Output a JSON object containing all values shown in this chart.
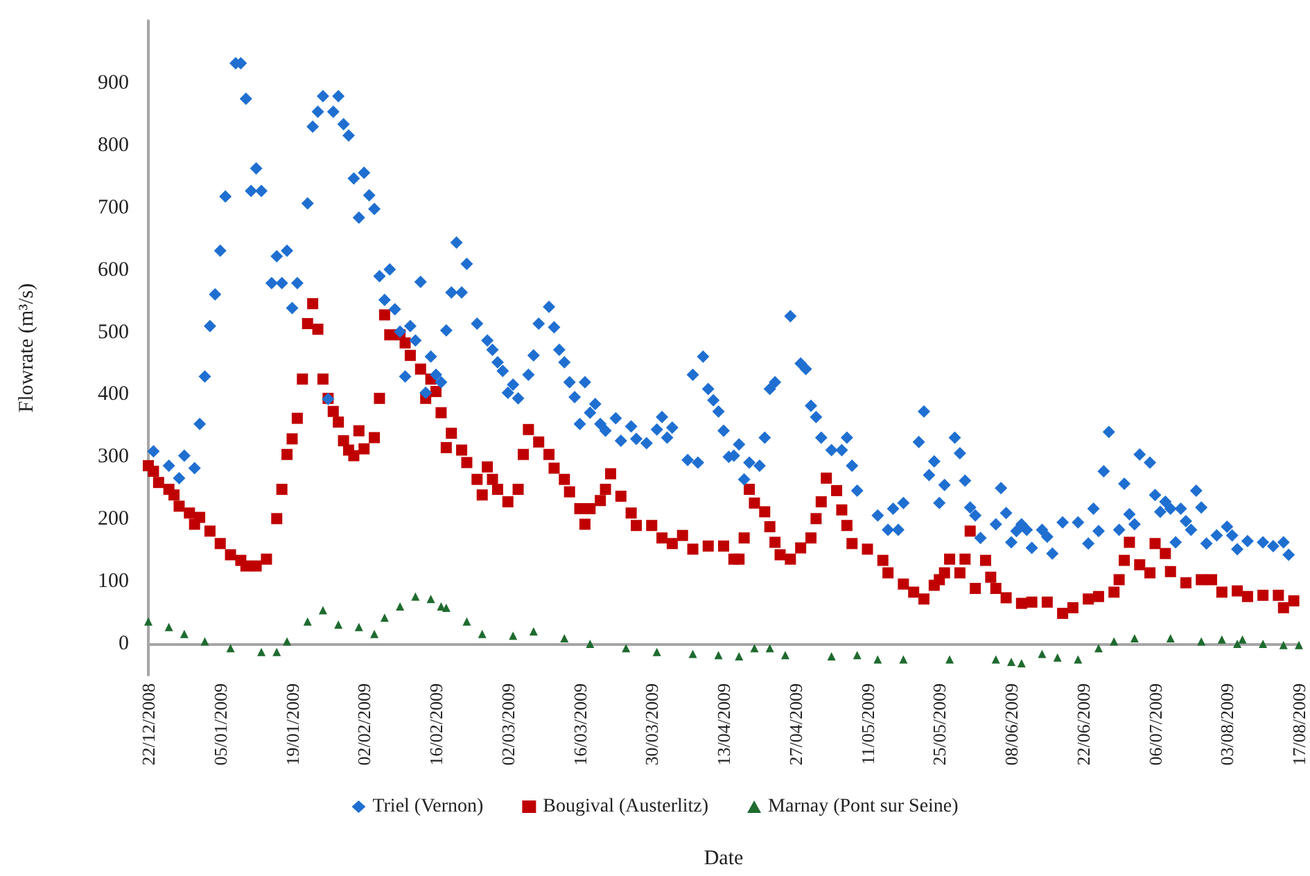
{
  "chart_data": {
    "type": "scatter",
    "xlabel": "Date",
    "ylabel": "Flowrate (m³/s)",
    "categories": [
      "22/12/2008",
      null,
      null,
      null,
      null,
      null,
      null,
      null,
      null,
      null,
      null,
      null,
      null,
      null,
      "05/01/2009",
      null,
      null,
      null,
      null,
      null,
      null,
      null,
      null,
      null,
      null,
      null,
      null,
      null,
      "19/01/2009",
      null,
      null,
      null,
      null,
      null,
      null,
      null,
      null,
      null,
      null,
      null,
      null,
      null,
      "02/02/2009",
      null,
      null,
      null,
      null,
      null,
      null,
      null,
      null,
      null,
      null,
      null,
      null,
      null,
      "16/02/2009",
      null,
      null,
      null,
      null,
      null,
      null,
      null,
      null,
      null,
      null,
      null,
      null,
      null,
      "02/03/2009",
      null,
      null,
      null,
      null,
      null,
      null,
      null,
      null,
      null,
      null,
      null,
      null,
      null,
      "16/03/2009",
      null,
      null,
      null,
      null,
      null,
      null,
      null,
      null,
      null,
      null,
      null,
      null,
      null,
      "30/03/2009",
      null,
      null,
      null,
      null,
      null,
      null,
      null,
      null,
      null,
      null,
      null,
      null,
      null,
      "13/04/2009",
      null,
      null,
      null,
      null,
      null,
      null,
      null,
      null,
      null,
      null,
      null,
      null,
      null,
      "27/04/2009",
      null,
      null,
      null,
      null,
      null,
      null,
      null,
      null,
      null,
      null,
      null,
      null,
      null,
      "11/05/2009",
      null,
      null,
      null,
      null,
      null,
      null,
      null,
      null,
      null,
      null,
      null,
      null,
      null,
      "25/05/2009",
      null,
      null,
      null,
      null,
      null,
      null,
      null,
      null,
      null,
      null,
      null,
      null,
      null,
      "08/06/2009",
      null,
      null,
      null,
      null,
      null,
      null,
      null,
      null,
      null,
      null,
      null,
      null,
      null,
      "22/06/2009",
      null,
      null,
      null,
      null,
      null,
      null,
      null,
      null,
      null,
      null,
      null,
      null,
      null,
      "06/07/2009",
      null,
      null,
      null,
      null,
      null,
      null,
      null,
      null,
      null,
      null,
      null,
      null,
      null,
      "03/08/2009",
      null,
      null,
      null,
      null,
      null,
      null,
      null,
      null,
      null,
      null,
      null,
      null,
      null,
      "17/08/2009"
    ],
    "ylim": [
      -50,
      1000
    ],
    "yticks": [
      0,
      100,
      200,
      300,
      400,
      500,
      600,
      700,
      800,
      900
    ],
    "legend": "bottom",
    "series": [
      {
        "name": "Triel (Vernon)",
        "color": "#1f6fd1",
        "marker": "diamond",
        "values": [
          null,
          309,
          null,
          null,
          286,
          null,
          266,
          302,
          null,
          282,
          353,
          429,
          510,
          561,
          631,
          718,
          null,
          932,
          932,
          875,
          727,
          763,
          727,
          null,
          579,
          622,
          579,
          631,
          539,
          579,
          null,
          707,
          830,
          854,
          879,
          393,
          854,
          879,
          834,
          816,
          747,
          684,
          756,
          720,
          698,
          590,
          552,
          601,
          537,
          501,
          429,
          510,
          487,
          581,
          403,
          461,
          432,
          420,
          503,
          564,
          644,
          564,
          610,
          null,
          514,
          null,
          487,
          472,
          452,
          438,
          403,
          416,
          394,
          null,
          432,
          463,
          514,
          null,
          541,
          508,
          472,
          452,
          420,
          396,
          353,
          420,
          371,
          385,
          353,
          342,
          null,
          362,
          326,
          null,
          349,
          329,
          null,
          322,
          null,
          344,
          364,
          331,
          347,
          null,
          null,
          295,
          432,
          291,
          461,
          409,
          391,
          373,
          342,
          300,
          302,
          320,
          264,
          291,
          null,
          286,
          331,
          409,
          420,
          null,
          null,
          526,
          null,
          450,
          441,
          382,
          364,
          331,
          null,
          311,
          null,
          311,
          331,
          286,
          246,
          null,
          null,
          null,
          206,
          null,
          183,
          217,
          183,
          226,
          null,
          null,
          324,
          373,
          271,
          293,
          226,
          255,
          null,
          331,
          306,
          262,
          219,
          206,
          170,
          null,
          null,
          192,
          250,
          210,
          163,
          181,
          192,
          183,
          154,
          null,
          183,
          172,
          145,
          null,
          195,
          null,
          null,
          195,
          null,
          161,
          217,
          181,
          277,
          340,
          null,
          183,
          257,
          208,
          192,
          304,
          null,
          291,
          239,
          212,
          228,
          217,
          163,
          217,
          197,
          183,
          246,
          219,
          161,
          null,
          174,
          null,
          188,
          174,
          152,
          null,
          165,
          null,
          null,
          163,
          null,
          157,
          null,
          163,
          143,
          null,
          null
        ]
      },
      {
        "name": "Bougival (Austerlitz)",
        "color": "#c00000",
        "marker": "square",
        "values": [
          286,
          277,
          259,
          null,
          248,
          239,
          221,
          null,
          210,
          192,
          203,
          null,
          181,
          null,
          161,
          null,
          143,
          null,
          134,
          125,
          null,
          125,
          null,
          136,
          null,
          201,
          248,
          304,
          329,
          362,
          425,
          514,
          546,
          505,
          425,
          394,
          373,
          356,
          326,
          311,
          302,
          342,
          313,
          null,
          331,
          394,
          528,
          496,
          null,
          496,
          483,
          463,
          null,
          441,
          394,
          425,
          405,
          371,
          315,
          338,
          null,
          311,
          291,
          null,
          264,
          239,
          284,
          264,
          248,
          null,
          228,
          null,
          248,
          304,
          344,
          null,
          324,
          null,
          304,
          282,
          null,
          264,
          244,
          null,
          217,
          192,
          217,
          null,
          230,
          248,
          273,
          null,
          237,
          null,
          210,
          190,
          null,
          null,
          190,
          null,
          170,
          null,
          161,
          null,
          174,
          null,
          152,
          null,
          null,
          157,
          null,
          null,
          157,
          null,
          136,
          136,
          170,
          248,
          226,
          null,
          212,
          188,
          163,
          143,
          null,
          136,
          null,
          154,
          null,
          170,
          201,
          228,
          266,
          null,
          246,
          215,
          190,
          161,
          null,
          null,
          152,
          null,
          null,
          134,
          114,
          null,
          null,
          96,
          null,
          83,
          null,
          72,
          null,
          94,
          103,
          114,
          136,
          null,
          114,
          136,
          181,
          89,
          null,
          134,
          107,
          89,
          null,
          74,
          null,
          null,
          65,
          null,
          67,
          null,
          null,
          67,
          null,
          null,
          49,
          null,
          58,
          null,
          null,
          72,
          null,
          76,
          null,
          null,
          83,
          103,
          134,
          163,
          null,
          127,
          null,
          114,
          161,
          null,
          145,
          116,
          null,
          null,
          98,
          null,
          null,
          103,
          null,
          103,
          null,
          83,
          null,
          null,
          85,
          null,
          76,
          null,
          null,
          78,
          null,
          null,
          78,
          58,
          null,
          69,
          null
        ]
      },
      {
        "name": "Marnay (Pont sur Seine)",
        "color": "#1e6b2f",
        "marker": "triangle",
        "values": [
          36,
          null,
          null,
          null,
          27,
          null,
          null,
          16,
          null,
          null,
          null,
          4,
          null,
          null,
          null,
          null,
          -7,
          null,
          null,
          null,
          null,
          null,
          -13,
          null,
          null,
          -13,
          null,
          4,
          null,
          null,
          null,
          36,
          null,
          null,
          54,
          null,
          null,
          31,
          null,
          null,
          null,
          27,
          null,
          null,
          16,
          null,
          42,
          null,
          null,
          60,
          null,
          null,
          76,
          null,
          null,
          72,
          null,
          60,
          58,
          null,
          null,
          null,
          36,
          null,
          null,
          16,
          null,
          null,
          null,
          null,
          null,
          13,
          null,
          null,
          null,
          20,
          null,
          null,
          null,
          null,
          null,
          9,
          null,
          null,
          null,
          null,
          0,
          null,
          null,
          null,
          null,
          null,
          null,
          -7,
          null,
          null,
          null,
          null,
          null,
          -13,
          null,
          null,
          null,
          null,
          null,
          null,
          -16,
          null,
          null,
          null,
          null,
          -18,
          null,
          null,
          null,
          -20,
          null,
          null,
          -7,
          null,
          null,
          -7,
          null,
          null,
          -18,
          null,
          null,
          null,
          null,
          null,
          null,
          null,
          null,
          -20,
          null,
          null,
          null,
          null,
          -18,
          null,
          null,
          null,
          -25,
          null,
          null,
          null,
          null,
          -25,
          null,
          null,
          null,
          null,
          null,
          null,
          null,
          null,
          -25,
          null,
          null,
          null,
          null,
          null,
          null,
          null,
          null,
          -25,
          null,
          null,
          -29,
          null,
          -31,
          null,
          null,
          null,
          -16,
          null,
          null,
          -22,
          null,
          null,
          null,
          -25,
          null,
          null,
          null,
          -7,
          null,
          null,
          4,
          null,
          null,
          null,
          9,
          null,
          null,
          null,
          null,
          null,
          null,
          9,
          null,
          null,
          null,
          null,
          null,
          4,
          null,
          null,
          null,
          7,
          null,
          null,
          0,
          7,
          null,
          null,
          null,
          0,
          null,
          null,
          null,
          -2,
          null,
          null,
          -2
        ]
      }
    ]
  }
}
